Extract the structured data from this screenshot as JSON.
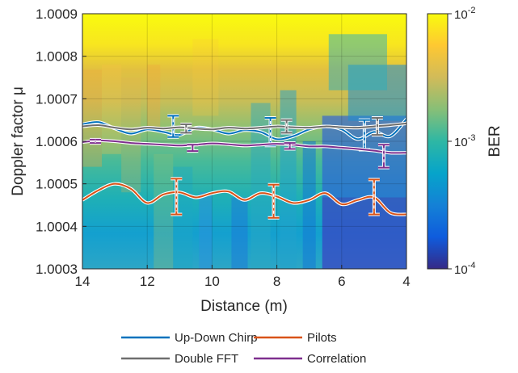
{
  "chart_data": {
    "type": "heatmap",
    "xlabel": "Distance (m)",
    "ylabel": "Doppler factor μ",
    "xlim": [
      14,
      4
    ],
    "x_reversed": true,
    "ylim": [
      1.0003,
      1.0009
    ],
    "x_ticks": [
      14,
      12,
      10,
      8,
      6,
      4
    ],
    "x_tick_labels": [
      "14",
      "12",
      "10",
      "8",
      "6",
      "4"
    ],
    "y_ticks": [
      1.0003,
      1.0004,
      1.0005,
      1.0006,
      1.0007,
      1.0008,
      1.0009
    ],
    "y_tick_labels": [
      "1.0003",
      "1.0004",
      "1.0005",
      "1.0006",
      "1.0007",
      "1.0008",
      "1.0009"
    ],
    "colorbar": {
      "label": "BER",
      "scale": "log",
      "range": [
        0.0001,
        0.01
      ],
      "ticks": [
        {
          "value": 0.01,
          "base": "10",
          "exp": "-2"
        },
        {
          "value": 0.001,
          "base": "10",
          "exp": "-3"
        },
        {
          "value": 0.0001,
          "base": "10",
          "exp": "-4"
        }
      ],
      "colormap": "parula"
    },
    "grid": true,
    "legend_position": "bottom",
    "series": [
      {
        "name": "Up-Down Chirp",
        "color": "#0072BD",
        "x": [
          14,
          13.5,
          13,
          12.5,
          12,
          11.5,
          11,
          10.5,
          10,
          9.5,
          9,
          8.5,
          8,
          7.5,
          7,
          6.5,
          6,
          5.5,
          5,
          4.5,
          4
        ],
        "y": [
          1.00064,
          1.000645,
          1.00063,
          1.000618,
          1.000628,
          1.000622,
          1.000615,
          1.000632,
          1.000628,
          1.000618,
          1.000626,
          1.000622,
          1.000605,
          1.000612,
          1.000628,
          1.000635,
          1.000628,
          1.000605,
          1.000622,
          1.000612,
          1.000652
        ],
        "error_bars": [
          {
            "x": 11.2,
            "y": 1.00063,
            "low": 1.00061,
            "high": 1.00066
          },
          {
            "x": 8.2,
            "y": 1.00062,
            "low": 1.00059,
            "high": 1.000655
          },
          {
            "x": 5.3,
            "y": 1.000615,
            "low": 1.00058,
            "high": 1.00065
          }
        ]
      },
      {
        "name": "Double FFT",
        "color": "#6E6E6E",
        "x": [
          14,
          13.5,
          13,
          12.5,
          12,
          11.5,
          11,
          10.5,
          10,
          9.5,
          9,
          8.5,
          8,
          7.5,
          7,
          6.5,
          6,
          5.5,
          5,
          4.5,
          4
        ],
        "y": [
          1.000635,
          1.000638,
          1.000632,
          1.000628,
          1.000632,
          1.00063,
          1.000633,
          1.00063,
          1.000628,
          1.000632,
          1.00063,
          1.000632,
          1.000635,
          1.000633,
          1.000632,
          1.000635,
          1.000633,
          1.000632,
          1.000635,
          1.000638,
          1.000642
        ],
        "error_bars": [
          {
            "x": 10.8,
            "y": 1.00063,
            "low": 1.00062,
            "high": 1.00064
          },
          {
            "x": 7.7,
            "y": 1.000635,
            "low": 1.00062,
            "high": 1.00065
          },
          {
            "x": 4.9,
            "y": 1.000635,
            "low": 1.000615,
            "high": 1.000655
          }
        ]
      },
      {
        "name": "Pilots",
        "color": "#D95319",
        "x": [
          14,
          13.5,
          13,
          12.5,
          12,
          11.5,
          11,
          10.5,
          10,
          9.5,
          9,
          8.5,
          8,
          7.5,
          7,
          6.5,
          6,
          5.5,
          5,
          4.5,
          4
        ],
        "y": [
          1.000462,
          1.000485,
          1.0005,
          1.000488,
          1.000455,
          1.000475,
          1.00048,
          1.000468,
          1.000478,
          1.000482,
          1.000462,
          1.000478,
          1.00047,
          1.000455,
          1.000462,
          1.000478,
          1.000452,
          1.000462,
          1.000468,
          1.000432,
          1.000428
        ],
        "error_bars": [
          {
            "x": 11.1,
            "y": 1.00047,
            "low": 1.000428,
            "high": 1.000512
          },
          {
            "x": 8.1,
            "y": 1.000465,
            "low": 1.00042,
            "high": 1.000498
          },
          {
            "x": 5.0,
            "y": 1.000468,
            "low": 1.000428,
            "high": 1.00051
          }
        ]
      },
      {
        "name": "Correlation",
        "color": "#7E2F8E",
        "x": [
          14,
          13.5,
          13,
          12.5,
          12,
          11.5,
          11,
          10.5,
          10,
          9.5,
          9,
          8.5,
          8,
          7.5,
          7,
          6.5,
          6,
          5.5,
          5,
          4.5,
          4
        ],
        "y": [
          1.000598,
          1.000602,
          1.0006,
          1.000596,
          1.000594,
          1.000592,
          1.00059,
          1.000592,
          1.000595,
          1.000593,
          1.00059,
          1.000592,
          1.000594,
          1.000592,
          1.000588,
          1.000588,
          1.000585,
          1.000582,
          1.000578,
          1.000573,
          1.000573
        ],
        "error_bars": [
          {
            "x": 13.6,
            "y": 1.0006,
            "low": 1.000596,
            "high": 1.000604
          },
          {
            "x": 10.6,
            "y": 1.000585,
            "low": 1.000577,
            "high": 1.000592
          },
          {
            "x": 7.6,
            "y": 1.00059,
            "low": 1.000582,
            "high": 1.000596
          },
          {
            "x": 4.7,
            "y": 1.000565,
            "low": 1.000538,
            "high": 1.000592
          }
        ]
      }
    ]
  }
}
